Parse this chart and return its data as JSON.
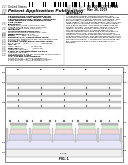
{
  "bg_color": "#ffffff",
  "text_color": "#000000",
  "gray": "#666666",
  "light_gray": "#aaaaaa",
  "figsize": [
    1.28,
    1.65
  ],
  "dpi": 100
}
